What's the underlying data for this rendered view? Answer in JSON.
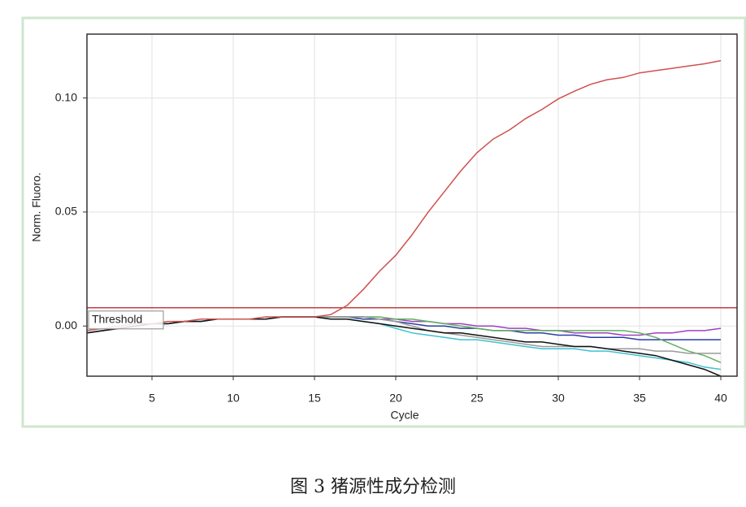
{
  "chart_data": {
    "type": "line",
    "xlabel": "Cycle",
    "ylabel": "Norm. Fluoro.",
    "x": [
      1,
      2,
      3,
      4,
      5,
      6,
      7,
      8,
      9,
      10,
      11,
      12,
      13,
      14,
      15,
      16,
      17,
      18,
      19,
      20,
      21,
      22,
      23,
      24,
      25,
      26,
      27,
      28,
      29,
      30,
      31,
      32,
      33,
      34,
      35,
      36,
      37,
      38,
      39,
      40
    ],
    "xlim": [
      1,
      41
    ],
    "xticks": [
      5,
      10,
      15,
      20,
      25,
      30,
      35,
      40
    ],
    "ylim": [
      -0.022,
      0.128
    ],
    "yticks": [
      {
        "value": 0,
        "label": "0.00"
      },
      0.05,
      {
        "value": 0.1,
        "label": "0.10"
      }
    ],
    "grid": true,
    "threshold": {
      "value": 0.008,
      "label": "Threshold",
      "color": "#c04040"
    },
    "series": [
      {
        "color": "#2a3fa0",
        "values": [
          -0.003,
          -0.002,
          -0.001,
          0,
          0.001,
          0.001,
          0.002,
          0.002,
          0.003,
          0.003,
          0.003,
          0.003,
          0.004,
          0.004,
          0.004,
          0.004,
          0.004,
          0.003,
          0.003,
          0.002,
          0.001,
          0.0,
          0.0,
          -0.001,
          -0.001,
          -0.002,
          -0.002,
          -0.003,
          -0.003,
          -0.004,
          -0.004,
          -0.005,
          -0.005,
          -0.005,
          -0.006,
          -0.006,
          -0.006,
          -0.006,
          -0.006,
          -0.006
        ]
      },
      {
        "color": "#a040c0",
        "values": [
          -0.003,
          -0.002,
          -0.001,
          0,
          0.001,
          0.001,
          0.002,
          0.002,
          0.003,
          0.003,
          0.003,
          0.003,
          0.004,
          0.004,
          0.004,
          0.004,
          0.004,
          0.004,
          0.003,
          0.003,
          0.002,
          0.002,
          0.001,
          0.001,
          0.0,
          0.0,
          -0.001,
          -0.001,
          -0.002,
          -0.002,
          -0.003,
          -0.003,
          -0.003,
          -0.004,
          -0.004,
          -0.003,
          -0.003,
          -0.002,
          -0.002,
          -0.001
        ]
      },
      {
        "color": "#60b060",
        "values": [
          -0.003,
          -0.002,
          -0.001,
          0,
          0.001,
          0.001,
          0.002,
          0.002,
          0.003,
          0.003,
          0.003,
          0.003,
          0.004,
          0.004,
          0.004,
          0.004,
          0.004,
          0.004,
          0.004,
          0.003,
          0.003,
          0.002,
          0.001,
          0.0,
          -0.001,
          -0.002,
          -0.002,
          -0.002,
          -0.002,
          -0.002,
          -0.002,
          -0.002,
          -0.002,
          -0.002,
          -0.003,
          -0.005,
          -0.008,
          -0.011,
          -0.013,
          -0.016
        ]
      },
      {
        "color": "#40c0d0",
        "values": [
          -0.003,
          -0.002,
          -0.001,
          0,
          0.001,
          0.001,
          0.002,
          0.002,
          0.003,
          0.003,
          0.003,
          0.003,
          0.004,
          0.004,
          0.004,
          0.003,
          0.003,
          0.002,
          0.001,
          -0.001,
          -0.003,
          -0.004,
          -0.005,
          -0.006,
          -0.006,
          -0.007,
          -0.008,
          -0.009,
          -0.01,
          -0.01,
          -0.01,
          -0.011,
          -0.011,
          -0.012,
          -0.013,
          -0.014,
          -0.015,
          -0.016,
          -0.018,
          -0.019
        ]
      },
      {
        "color": "#9a9a9a",
        "values": [
          -0.003,
          -0.002,
          -0.001,
          0,
          0.001,
          0.001,
          0.002,
          0.002,
          0.003,
          0.003,
          0.003,
          0.003,
          0.004,
          0.004,
          0.004,
          0.004,
          0.004,
          0.004,
          0.003,
          0.002,
          0.0,
          -0.002,
          -0.003,
          -0.004,
          -0.005,
          -0.006,
          -0.007,
          -0.008,
          -0.009,
          -0.009,
          -0.009,
          -0.009,
          -0.01,
          -0.01,
          -0.01,
          -0.011,
          -0.011,
          -0.012,
          -0.012,
          -0.012
        ]
      },
      {
        "color": "#111111",
        "values": [
          -0.003,
          -0.002,
          -0.001,
          0,
          0.001,
          0.001,
          0.002,
          0.002,
          0.003,
          0.003,
          0.003,
          0.003,
          0.004,
          0.004,
          0.004,
          0.003,
          0.003,
          0.002,
          0.001,
          0.0,
          -0.001,
          -0.002,
          -0.003,
          -0.003,
          -0.004,
          -0.005,
          -0.006,
          -0.007,
          -0.007,
          -0.008,
          -0.009,
          -0.009,
          -0.01,
          -0.011,
          -0.012,
          -0.013,
          -0.015,
          -0.017,
          -0.019,
          -0.022
        ]
      },
      {
        "color": "#d05050",
        "values": [
          -0.002,
          -0.001,
          0,
          0.001,
          0.001,
          0.002,
          0.002,
          0.003,
          0.003,
          0.003,
          0.003,
          0.004,
          0.004,
          0.004,
          0.004,
          0.005,
          0.009,
          0.016,
          0.024,
          0.031,
          0.04,
          0.05,
          0.059,
          0.068,
          0.076,
          0.082,
          0.086,
          0.091,
          0.095,
          0.0996,
          0.103,
          0.106,
          0.108,
          0.109,
          0.111,
          0.112,
          0.113,
          0.114,
          0.115,
          0.1164
        ]
      }
    ]
  },
  "caption": "图 3 猪源性成分检测"
}
